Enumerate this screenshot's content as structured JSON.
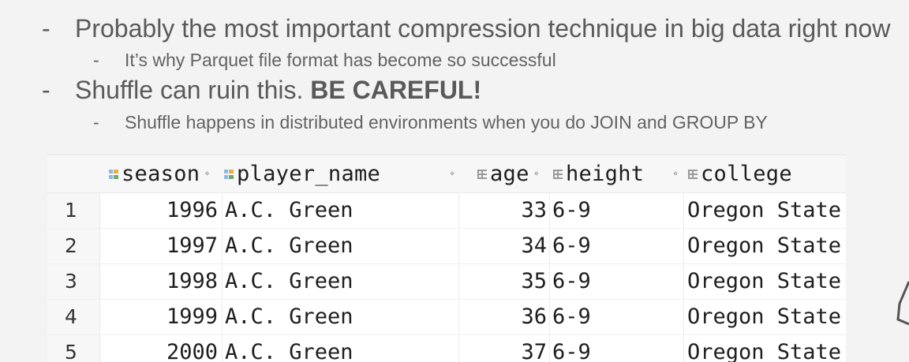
{
  "slide": {
    "bullets": [
      {
        "dash": "-",
        "text": "Probably the most important compression technique in big data right now"
      },
      {
        "dash": "-",
        "text": "It’s why Parquet file format has become so successful"
      },
      {
        "dash": "-",
        "text_plain": "Shuffle can ruin this. ",
        "text_bold": "BE CAREFUL!"
      },
      {
        "dash": "-",
        "text": "Shuffle happens in distributed environments when you do JOIN and GROUP BY"
      }
    ]
  },
  "table": {
    "columns": [
      {
        "name": "season",
        "icon": "key-column-icon"
      },
      {
        "name": "player_name",
        "icon": "key-column-icon"
      },
      {
        "name": "age",
        "icon": "numeric-column-icon"
      },
      {
        "name": "height",
        "icon": "numeric-column-icon"
      },
      {
        "name": "college",
        "icon": "numeric-column-icon"
      }
    ],
    "rows": [
      {
        "num": "1",
        "season": "1996",
        "player_name": "A.C. Green",
        "age": "33",
        "height": "6-9",
        "college": "Oregon State"
      },
      {
        "num": "2",
        "season": "1997",
        "player_name": "A.C. Green",
        "age": "34",
        "height": "6-9",
        "college": "Oregon State"
      },
      {
        "num": "3",
        "season": "1998",
        "player_name": "A.C. Green",
        "age": "35",
        "height": "6-9",
        "college": "Oregon State"
      },
      {
        "num": "4",
        "season": "1999",
        "player_name": "A.C. Green",
        "age": "36",
        "height": "6-9",
        "college": "Oregon State"
      },
      {
        "num": "5",
        "season": "2000",
        "player_name": "A.C. Green",
        "age": "37",
        "height": "6-9",
        "college": "Oregon State"
      }
    ]
  }
}
